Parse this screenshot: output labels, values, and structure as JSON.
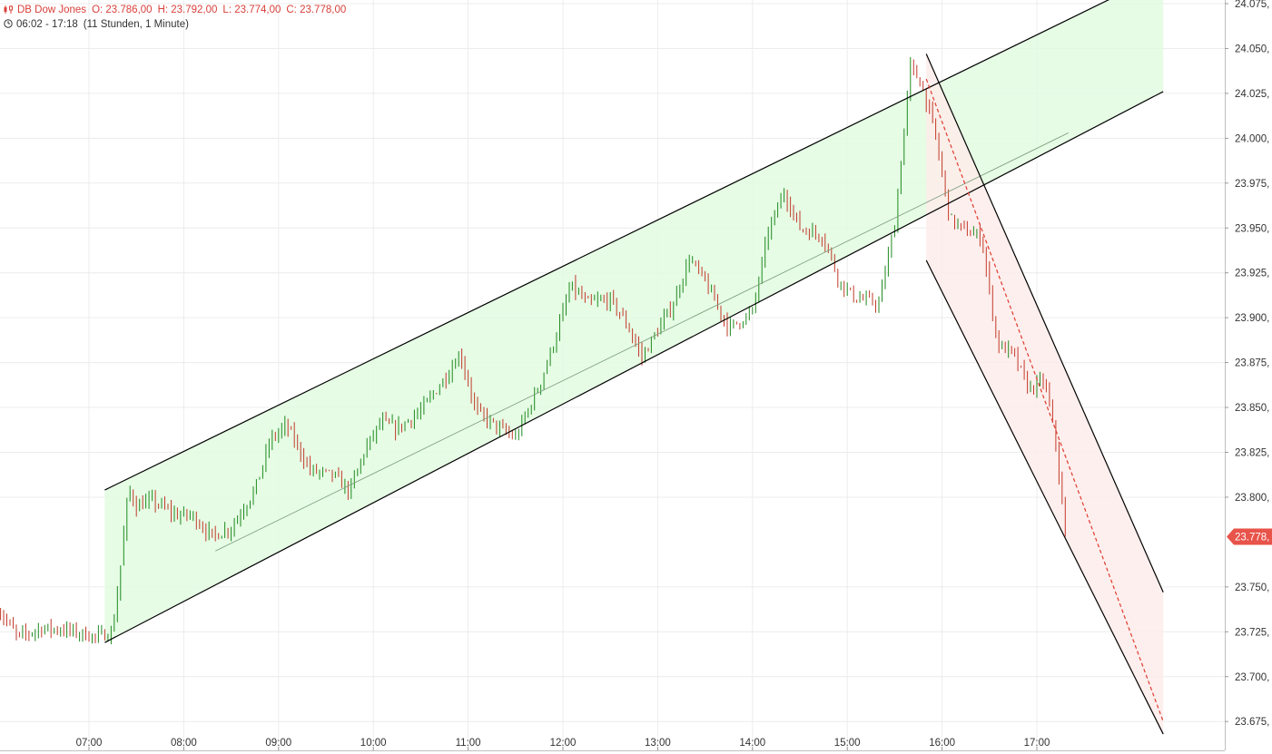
{
  "header": {
    "instrument": "DB Dow Jones",
    "open": "O: 23.786,00",
    "high": "H: 23.792,00",
    "low": "L: 23.774,00",
    "close": "C: 23.778,00",
    "time_range": "06:02 - 17:18",
    "interval": "(11 Stunden, 1 Minute)"
  },
  "colors": {
    "up": "#1f8a1f",
    "down": "#c23a2a",
    "accent": "#e8534a",
    "channel_up_fill": "#e2fbe0",
    "channel_down_fill": "#fdecea",
    "grid": "#ececec"
  },
  "icons": {
    "instrument": "candles-icon",
    "clock": "clock-icon"
  },
  "price_badge": "23.778,",
  "chart_data": {
    "type": "candlestick",
    "title": "DB Dow Jones",
    "x_ticks": [
      "07:00",
      "08:00",
      "09:00",
      "10:00",
      "11:00",
      "12:00",
      "13:00",
      "14:00",
      "15:00",
      "16:00",
      "17:00"
    ],
    "y_ticks": [
      "24.075,",
      "24.050,",
      "24.025,",
      "24.000,",
      "23.975,",
      "23.950,",
      "23.925,",
      "23.900,",
      "23.875,",
      "23.850,",
      "23.825,",
      "23.800,",
      "23.750,",
      "23.725,",
      "23.700,",
      "23.675,"
    ],
    "y_tick_values": [
      24075,
      24050,
      24025,
      24000,
      23975,
      23950,
      23925,
      23900,
      23875,
      23850,
      23825,
      23800,
      23750,
      23725,
      23700,
      23675
    ],
    "ylim": [
      23668,
      24078
    ],
    "xlim": [
      "06:02",
      "18:20"
    ],
    "last_price": 23778,
    "grid": true,
    "price_path": [
      [
        "06:02",
        23738
      ],
      [
        "06:15",
        23722
      ],
      [
        "06:30",
        23727
      ],
      [
        "06:45",
        23726
      ],
      [
        "07:05",
        23722
      ],
      [
        "07:15",
        23725
      ],
      [
        "07:20",
        23762
      ],
      [
        "07:25",
        23805
      ],
      [
        "07:30",
        23795
      ],
      [
        "07:40",
        23798
      ],
      [
        "07:55",
        23790
      ],
      [
        "08:05",
        23790
      ],
      [
        "08:18",
        23778
      ],
      [
        "08:30",
        23783
      ],
      [
        "08:45",
        23804
      ],
      [
        "08:55",
        23832
      ],
      [
        "09:05",
        23840
      ],
      [
        "09:20",
        23815
      ],
      [
        "09:35",
        23812
      ],
      [
        "09:45",
        23803
      ],
      [
        "09:55",
        23827
      ],
      [
        "10:05",
        23842
      ],
      [
        "10:15",
        23838
      ],
      [
        "10:30",
        23848
      ],
      [
        "10:45",
        23866
      ],
      [
        "10:55",
        23880
      ],
      [
        "11:05",
        23848
      ],
      [
        "11:20",
        23838
      ],
      [
        "11:30",
        23833
      ],
      [
        "11:45",
        23862
      ],
      [
        "11:55",
        23888
      ],
      [
        "12:05",
        23918
      ],
      [
        "12:15",
        23908
      ],
      [
        "12:30",
        23910
      ],
      [
        "12:40",
        23897
      ],
      [
        "12:50",
        23878
      ],
      [
        "13:00",
        23893
      ],
      [
        "13:10",
        23908
      ],
      [
        "13:20",
        23933
      ],
      [
        "13:30",
        23920
      ],
      [
        "13:45",
        23894
      ],
      [
        "14:00",
        23903
      ],
      [
        "14:10",
        23948
      ],
      [
        "14:20",
        23970
      ],
      [
        "14:30",
        23950
      ],
      [
        "14:45",
        23945
      ],
      [
        "14:55",
        23920
      ],
      [
        "15:05",
        23911
      ],
      [
        "15:20",
        23908
      ],
      [
        "15:30",
        23952
      ],
      [
        "15:40",
        24040
      ],
      [
        "15:47",
        24030
      ],
      [
        "15:55",
        24005
      ],
      [
        "16:05",
        23955
      ],
      [
        "16:15",
        23948
      ],
      [
        "16:25",
        23945
      ],
      [
        "16:35",
        23885
      ],
      [
        "16:45",
        23880
      ],
      [
        "16:55",
        23860
      ],
      [
        "17:05",
        23865
      ],
      [
        "17:12",
        23830
      ],
      [
        "17:18",
        23778
      ]
    ],
    "channels": [
      {
        "name": "",
        "color": "#e2fbe0",
        "upper": [
          [
            "07:10",
            23804
          ],
          [
            "18:20",
            24092
          ]
        ],
        "lower": [
          [
            "07:10",
            23719
          ],
          [
            "18:20",
            24026
          ]
        ],
        "mid": [
          [
            "08:20",
            23770
          ],
          [
            "17:20",
            24003
          ]
        ]
      },
      {
        "name": "",
        "color": "#fdecea",
        "upper": [
          [
            "15:50",
            24047
          ],
          [
            "18:20",
            23747
          ]
        ],
        "lower": [
          [
            "15:50",
            23932
          ],
          [
            "18:20",
            23668
          ]
        ],
        "mid": [
          [
            "15:50",
            24033
          ],
          [
            "18:20",
            23675
          ]
        ]
      }
    ]
  }
}
